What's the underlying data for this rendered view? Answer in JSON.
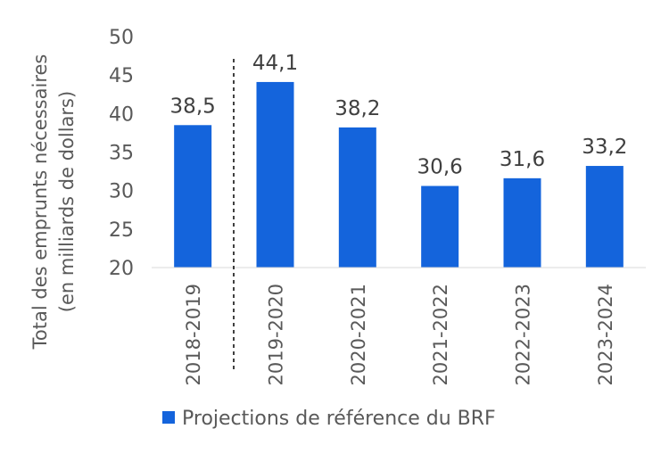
{
  "chart_data": {
    "type": "bar",
    "title": "",
    "ylabel_lines": [
      "Total des emprunts nécessaires",
      "(en milliards de dollars)"
    ],
    "xlabel": "",
    "categories": [
      "2018-2019",
      "2019-2020",
      "2020-2021",
      "2021-2022",
      "2022-2023",
      "2023-2024"
    ],
    "series": [
      {
        "name": "Projections de référence du BRF",
        "color": "#1464DC",
        "values": [
          38.5,
          44.1,
          38.2,
          30.6,
          31.6,
          33.2
        ],
        "labels": [
          "38,5",
          "44,1",
          "38,2",
          "30,6",
          "31,6",
          "33,2"
        ]
      }
    ],
    "ylim": [
      20,
      50
    ],
    "yticks": [
      "20",
      "25",
      "30",
      "35",
      "40",
      "45",
      "50"
    ],
    "grid": false,
    "legend_position": "bottom",
    "separator_after_category": "2018-2019"
  }
}
